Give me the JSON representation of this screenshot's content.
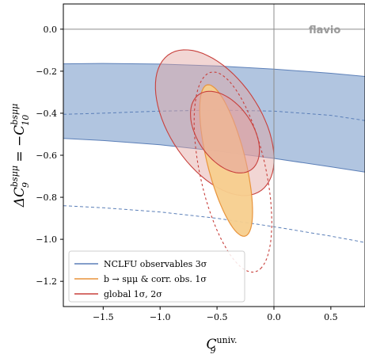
{
  "chart_data": {
    "type": "contour",
    "watermark": "flavio",
    "xlabel": {
      "main": "C",
      "sub": "9",
      "sup": "univ."
    },
    "ylabel": {
      "prefix": "ΔC",
      "sub1": "9",
      "sup1": "bsμμ",
      "mid": " = −C",
      "sub2": "10",
      "sup2": "bsμμ"
    },
    "xlim": [
      -1.85,
      0.8
    ],
    "ylim": [
      -1.32,
      0.12
    ],
    "xticks": [
      -1.5,
      -1.0,
      -0.5,
      0.0,
      0.5
    ],
    "xtick_labels": [
      "−1.5",
      "−1.0",
      "−0.5",
      "0.0",
      "0.5"
    ],
    "yticks": [
      0.0,
      -0.2,
      -0.4,
      -0.6,
      -0.8,
      -1.0,
      -1.2
    ],
    "ytick_labels": [
      "0.0",
      "−0.2",
      "−0.4",
      "−0.6",
      "−0.8",
      "−1.0",
      "−1.2"
    ],
    "reference_lines": {
      "x": 0.0,
      "y": 0.0
    },
    "colors": {
      "nclfu": "#5b7fb8",
      "nclfu_fill": "#a9bfdd",
      "bsmumu": "#e8943c",
      "bsmumu_fill": "#f7cf8e",
      "global": "#c8403c",
      "global_fill": "#e3a3a0"
    },
    "series": [
      {
        "name": "NCLFU observables 3σ",
        "kind": "band",
        "x": [
          -1.85,
          -1.5,
          -1.0,
          -0.5,
          0.0,
          0.5,
          0.8
        ],
        "upper_1": [
          -0.165,
          -0.163,
          -0.166,
          -0.175,
          -0.19,
          -0.21,
          -0.225
        ],
        "lower_1": [
          -0.52,
          -0.53,
          -0.55,
          -0.58,
          -0.615,
          -0.655,
          -0.68
        ],
        "upper_2": [
          -0.405,
          -0.4,
          -0.39,
          -0.385,
          -0.39,
          -0.41,
          -0.435
        ],
        "lower_2": [
          -0.84,
          -0.85,
          -0.87,
          -0.9,
          -0.94,
          -0.985,
          -1.015
        ]
      },
      {
        "name": "b → sμμ & corr. obs. 1σ",
        "kind": "contours",
        "ellipses": [
          {
            "level": "1σ",
            "cx": -0.42,
            "cy": -0.625,
            "rx": 0.4,
            "ry": 0.155,
            "angle_deg": 62,
            "filled": true,
            "dashed": false
          },
          {
            "level": "2σ",
            "cx": -0.36,
            "cy": -0.68,
            "rx": 0.52,
            "ry": 0.27,
            "angle_deg": 62,
            "filled": false,
            "dashed": true
          }
        ]
      },
      {
        "name": "global 1σ, 2σ",
        "kind": "contours",
        "ellipses": [
          {
            "level": "1σ",
            "cx": -0.43,
            "cy": -0.49,
            "rx": 0.32,
            "ry": 0.165,
            "angle_deg": 22,
            "filled": true,
            "dashed": false
          },
          {
            "level": "2σ",
            "cx": -0.52,
            "cy": -0.445,
            "rx": 0.56,
            "ry": 0.28,
            "angle_deg": 25,
            "filled": true,
            "dashed": false
          }
        ]
      }
    ],
    "legend": {
      "position": "lower-left",
      "entries": [
        {
          "label": "NCLFU observables 3σ",
          "color": "#5b7fb8"
        },
        {
          "label": "b → sμμ & corr. obs. 1σ",
          "color": "#e8943c"
        },
        {
          "label": "global 1σ, 2σ",
          "color": "#c8403c"
        }
      ]
    }
  }
}
